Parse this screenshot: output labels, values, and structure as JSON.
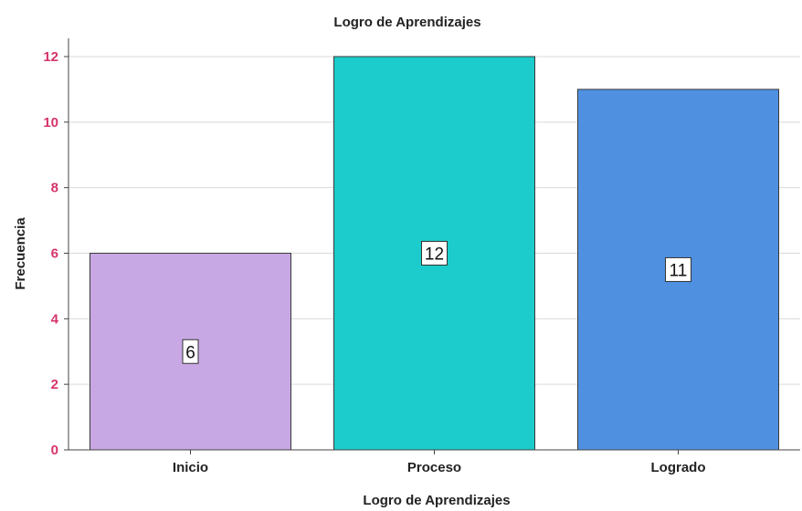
{
  "chart_data": {
    "type": "bar",
    "title": "Logro de Aprendizajes",
    "xlabel": "Logro de Aprendizajes",
    "ylabel": "Frecuencia",
    "categories": [
      "Inicio",
      "Proceso",
      "Logrado"
    ],
    "values": [
      6,
      12,
      11
    ],
    "data_labels": [
      "6",
      "12",
      "11"
    ],
    "bar_colors": [
      "#c8a8e4",
      "#1ccbcb",
      "#5090e0"
    ],
    "ylim": [
      0,
      12
    ],
    "yticks": [
      0,
      2,
      4,
      6,
      8,
      10,
      12
    ],
    "ytick_labels": [
      "0",
      "2",
      "4",
      "6",
      "8",
      "10",
      "12"
    ],
    "grid": true,
    "ytick_color": "#d6336c"
  }
}
